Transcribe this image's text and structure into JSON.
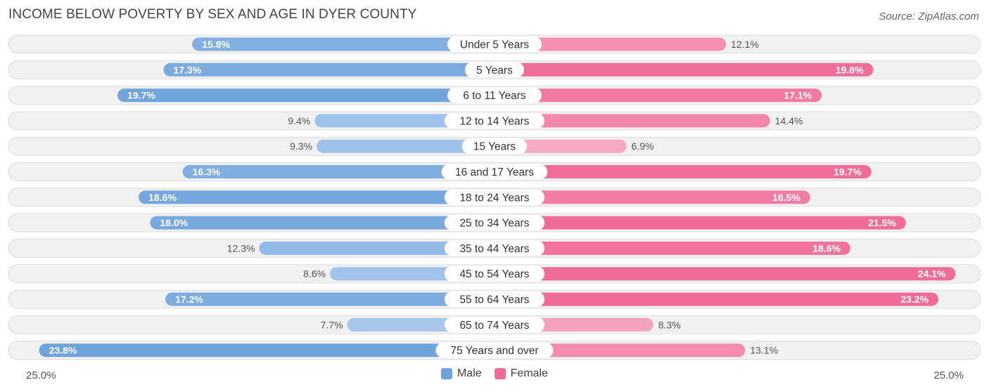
{
  "chart_data": {
    "type": "bar",
    "orientation": "horizontal-diverging",
    "title": "INCOME BELOW POVERTY BY SEX AND AGE IN DYER COUNTY",
    "source": "Source: ZipAtlas.com",
    "categories": [
      "Under 5 Years",
      "5 Years",
      "6 to 11 Years",
      "12 to 14 Years",
      "15 Years",
      "16 and 17 Years",
      "18 to 24 Years",
      "25 to 34 Years",
      "35 to 44 Years",
      "45 to 54 Years",
      "55 to 64 Years",
      "65 to 74 Years",
      "75 Years and over"
    ],
    "series": [
      {
        "name": "Male",
        "values": [
          15.8,
          17.3,
          19.7,
          9.4,
          9.3,
          16.3,
          18.6,
          18.0,
          12.3,
          8.6,
          17.2,
          7.7,
          23.8
        ]
      },
      {
        "name": "Female",
        "values": [
          12.1,
          19.8,
          17.1,
          14.4,
          6.9,
          19.7,
          16.5,
          21.5,
          18.6,
          24.1,
          23.2,
          8.3,
          13.1
        ]
      }
    ],
    "value_labels": {
      "male": [
        "15.8%",
        "17.3%",
        "19.7%",
        "9.4%",
        "9.3%",
        "16.3%",
        "18.6%",
        "18.0%",
        "12.3%",
        "8.6%",
        "17.2%",
        "7.7%",
        "23.8%"
      ],
      "female": [
        "12.1%",
        "19.8%",
        "17.1%",
        "14.4%",
        "6.9%",
        "19.7%",
        "16.5%",
        "21.5%",
        "18.6%",
        "24.1%",
        "23.2%",
        "8.3%",
        "13.1%"
      ]
    },
    "xlim": [
      0,
      25.0
    ],
    "axis_labels": {
      "left": "25.0%",
      "right": "25.0%"
    },
    "legend": {
      "position": "bottom-center",
      "items": [
        "Male",
        "Female"
      ]
    },
    "colors": {
      "male_strong": "#6fa3dc",
      "male_light": "#a9c9ec",
      "female_strong": "#f06c97",
      "female_light": "#f7a8c3",
      "track": "#f1f1f1",
      "track_border": "#dddddd"
    }
  }
}
